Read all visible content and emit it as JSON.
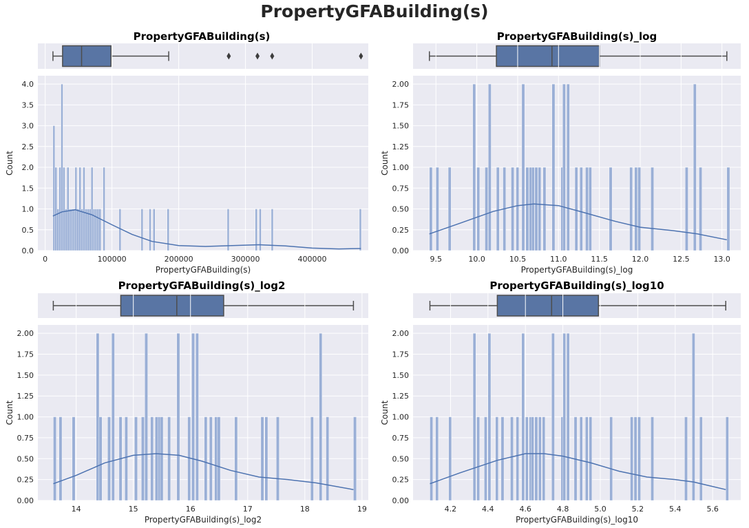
{
  "suptitle": "PropertyGFABuilding(s)",
  "colors": {
    "bar": "#9aafd6",
    "bar_stroke": "#ffffff",
    "kde": "#4c72b0",
    "box": "#5975a4",
    "bg": "#eaeaf2",
    "grid": "#ffffff",
    "box_line": "#4d4d4d"
  },
  "chart_data": [
    {
      "type": "bar",
      "title": "PropertyGFABuilding(s)",
      "xlabel": "PropertyGFABuilding(s)",
      "ylabel": "Count",
      "xlim": [
        -11000,
        484000
      ],
      "ylim": [
        0,
        4.2
      ],
      "xticks": [
        0,
        100000,
        200000,
        300000,
        400000
      ],
      "xtick_labels": [
        "0",
        "100000",
        "200000",
        "300000",
        "400000"
      ],
      "yticks": [
        0,
        0.5,
        1.0,
        1.5,
        2.0,
        2.5,
        3.0,
        3.5,
        4.0
      ],
      "ytick_labels": [
        "0.0",
        "0.5",
        "1.0",
        "1.5",
        "2.0",
        "2.5",
        "3.0",
        "3.5",
        "4.0"
      ],
      "bin_width": 3000,
      "bins": [
        [
          11600,
          3
        ],
        [
          14600,
          2
        ],
        [
          17600,
          1
        ],
        [
          20600,
          2
        ],
        [
          23600,
          4
        ],
        [
          26600,
          2
        ],
        [
          29600,
          1
        ],
        [
          32600,
          2
        ],
        [
          35600,
          1
        ],
        [
          38600,
          1
        ],
        [
          41600,
          1
        ],
        [
          44600,
          2
        ],
        [
          47600,
          1
        ],
        [
          50600,
          2
        ],
        [
          53600,
          1
        ],
        [
          56600,
          2
        ],
        [
          59600,
          1
        ],
        [
          62600,
          1
        ],
        [
          65600,
          1
        ],
        [
          68600,
          2
        ],
        [
          71600,
          1
        ],
        [
          74600,
          1
        ],
        [
          77600,
          1
        ],
        [
          80600,
          1
        ],
        [
          86600,
          2
        ],
        [
          110600,
          1
        ],
        [
          143600,
          1
        ],
        [
          155600,
          1
        ],
        [
          161600,
          1
        ],
        [
          182600,
          1
        ],
        [
          272600,
          1
        ],
        [
          314600,
          1
        ],
        [
          320600,
          1
        ],
        [
          338600,
          1
        ],
        [
          470600,
          1
        ]
      ],
      "kde": [
        [
          11600,
          0.83
        ],
        [
          25000,
          0.93
        ],
        [
          45000,
          0.98
        ],
        [
          70000,
          0.86
        ],
        [
          100000,
          0.62
        ],
        [
          130000,
          0.39
        ],
        [
          160000,
          0.22
        ],
        [
          200000,
          0.12
        ],
        [
          240000,
          0.1
        ],
        [
          280000,
          0.12
        ],
        [
          320000,
          0.14
        ],
        [
          360000,
          0.11
        ],
        [
          400000,
          0.06
        ],
        [
          440000,
          0.04
        ],
        [
          473000,
          0.05
        ]
      ],
      "box": {
        "whisker_low": 11600,
        "q1": 26000,
        "median": 54500,
        "q3": 98500,
        "whisker_high": 185000,
        "outliers": [
          275000,
          318000,
          340000,
          473000
        ]
      }
    },
    {
      "type": "bar",
      "title": "PropertyGFABuilding(s)_log",
      "xlabel": "PropertyGFABuilding(s)_log",
      "ylabel": "Count",
      "xlim": [
        9.22,
        13.23
      ],
      "ylim": [
        0,
        2.1
      ],
      "xticks": [
        9.5,
        10.0,
        10.5,
        11.0,
        11.5,
        12.0,
        12.5,
        13.0
      ],
      "xtick_labels": [
        "9.5",
        "10.0",
        "10.5",
        "11.0",
        "11.5",
        "12.0",
        "12.5",
        "13.0"
      ],
      "yticks": [
        0,
        0.25,
        0.5,
        0.75,
        1.0,
        1.25,
        1.5,
        1.75,
        2.0
      ],
      "ytick_labels": [
        "0.00",
        "0.25",
        "0.50",
        "0.75",
        "1.00",
        "1.25",
        "1.50",
        "1.75",
        "2.00"
      ],
      "bin_width": 0.036,
      "bins": [
        [
          9.42,
          1
        ],
        [
          9.5,
          1
        ],
        [
          9.65,
          1
        ],
        [
          9.95,
          2
        ],
        [
          10.0,
          1
        ],
        [
          10.1,
          1
        ],
        [
          10.14,
          2
        ],
        [
          10.24,
          1
        ],
        [
          10.32,
          1
        ],
        [
          10.42,
          1
        ],
        [
          10.48,
          1
        ],
        [
          10.55,
          2
        ],
        [
          10.6,
          1
        ],
        [
          10.64,
          1
        ],
        [
          10.67,
          1
        ],
        [
          10.71,
          1
        ],
        [
          10.75,
          1
        ],
        [
          10.81,
          1
        ],
        [
          10.92,
          2
        ],
        [
          11.03,
          1
        ],
        [
          11.05,
          2
        ],
        [
          11.1,
          2
        ],
        [
          11.2,
          1
        ],
        [
          11.26,
          1
        ],
        [
          11.33,
          1
        ],
        [
          11.37,
          1
        ],
        [
          11.62,
          1
        ],
        [
          11.87,
          1
        ],
        [
          11.93,
          1
        ],
        [
          11.97,
          1
        ],
        [
          12.13,
          1
        ],
        [
          12.55,
          1
        ],
        [
          12.65,
          2
        ],
        [
          12.72,
          1
        ],
        [
          13.06,
          1
        ]
      ],
      "kde": [
        [
          9.42,
          0.2
        ],
        [
          9.8,
          0.33
        ],
        [
          10.2,
          0.47
        ],
        [
          10.5,
          0.54
        ],
        [
          10.7,
          0.56
        ],
        [
          11.0,
          0.54
        ],
        [
          11.3,
          0.46
        ],
        [
          11.7,
          0.35
        ],
        [
          12.0,
          0.28
        ],
        [
          12.4,
          0.24
        ],
        [
          12.7,
          0.2
        ],
        [
          13.06,
          0.13
        ]
      ],
      "box": {
        "whisker_low": 9.42,
        "q1": 10.24,
        "median": 10.92,
        "q3": 11.5,
        "whisker_high": 13.06,
        "outliers": []
      }
    },
    {
      "type": "bar",
      "title": "PropertyGFABuilding(s)_log2",
      "xlabel": "PropertyGFABuilding(s)_log2",
      "ylabel": "Count",
      "xlim": [
        13.33,
        19.11
      ],
      "ylim": [
        0,
        2.1
      ],
      "xticks": [
        14,
        15,
        16,
        17,
        18,
        19
      ],
      "xtick_labels": [
        "14",
        "15",
        "16",
        "17",
        "18",
        "19"
      ],
      "yticks": [
        0,
        0.25,
        0.5,
        0.75,
        1.0,
        1.25,
        1.5,
        1.75,
        2.0
      ],
      "ytick_labels": [
        "0.00",
        "0.25",
        "0.50",
        "0.75",
        "1.00",
        "1.25",
        "1.50",
        "1.75",
        "2.00"
      ],
      "bin_width": 0.052,
      "bins": [
        [
          13.6,
          1
        ],
        [
          13.7,
          1
        ],
        [
          13.93,
          1
        ],
        [
          14.35,
          2
        ],
        [
          14.4,
          1
        ],
        [
          14.55,
          1
        ],
        [
          14.62,
          2
        ],
        [
          14.75,
          1
        ],
        [
          14.85,
          1
        ],
        [
          15.02,
          1
        ],
        [
          15.14,
          1
        ],
        [
          15.2,
          2
        ],
        [
          15.3,
          1
        ],
        [
          15.38,
          1
        ],
        [
          15.43,
          1
        ],
        [
          15.47,
          1
        ],
        [
          15.6,
          1
        ],
        [
          15.76,
          2
        ],
        [
          15.95,
          1
        ],
        [
          16.02,
          2
        ],
        [
          16.09,
          2
        ],
        [
          16.24,
          1
        ],
        [
          16.33,
          1
        ],
        [
          16.42,
          1
        ],
        [
          16.47,
          1
        ],
        [
          16.77,
          1
        ],
        [
          17.23,
          1
        ],
        [
          17.3,
          1
        ],
        [
          17.5,
          1
        ],
        [
          18.1,
          1
        ],
        [
          18.25,
          2
        ],
        [
          18.37,
          1
        ],
        [
          18.85,
          1
        ]
      ],
      "kde": [
        [
          13.6,
          0.2
        ],
        [
          14.0,
          0.3
        ],
        [
          14.5,
          0.45
        ],
        [
          15.0,
          0.54
        ],
        [
          15.4,
          0.56
        ],
        [
          15.8,
          0.54
        ],
        [
          16.2,
          0.47
        ],
        [
          16.7,
          0.36
        ],
        [
          17.2,
          0.28
        ],
        [
          17.7,
          0.25
        ],
        [
          18.2,
          0.21
        ],
        [
          18.85,
          0.13
        ]
      ],
      "box": {
        "whisker_low": 13.6,
        "q1": 14.78,
        "median": 15.76,
        "q3": 16.58,
        "whisker_high": 18.85,
        "outliers": []
      }
    },
    {
      "type": "bar",
      "title": "PropertyGFABuilding(s)_log10",
      "xlabel": "PropertyGFABuilding(s)_log10",
      "ylabel": "Count",
      "xlim": [
        4.0,
        5.75
      ],
      "ylim": [
        0,
        2.1
      ],
      "xticks": [
        4.2,
        4.4,
        4.6,
        4.8,
        5.0,
        5.2,
        5.4,
        5.6
      ],
      "xtick_labels": [
        "4.2",
        "4.4",
        "4.6",
        "4.8",
        "5.0",
        "5.2",
        "5.4",
        "5.6"
      ],
      "yticks": [
        0,
        0.25,
        0.5,
        0.75,
        1.0,
        1.25,
        1.5,
        1.75,
        2.0
      ],
      "ytick_labels": [
        "0.00",
        "0.25",
        "0.50",
        "0.75",
        "1.00",
        "1.25",
        "1.50",
        "1.75",
        "2.00"
      ],
      "bin_width": 0.0155,
      "bins": [
        [
          4.09,
          1
        ],
        [
          4.12,
          1
        ],
        [
          4.19,
          1
        ],
        [
          4.32,
          2
        ],
        [
          4.34,
          1
        ],
        [
          4.38,
          1
        ],
        [
          4.4,
          2
        ],
        [
          4.44,
          1
        ],
        [
          4.47,
          1
        ],
        [
          4.52,
          1
        ],
        [
          4.55,
          1
        ],
        [
          4.58,
          2
        ],
        [
          4.6,
          1
        ],
        [
          4.62,
          1
        ],
        [
          4.63,
          1
        ],
        [
          4.65,
          1
        ],
        [
          4.67,
          1
        ],
        [
          4.69,
          1
        ],
        [
          4.74,
          2
        ],
        [
          4.79,
          1
        ],
        [
          4.8,
          2
        ],
        [
          4.82,
          2
        ],
        [
          4.86,
          1
        ],
        [
          4.89,
          1
        ],
        [
          4.92,
          1
        ],
        [
          4.94,
          1
        ],
        [
          5.05,
          1
        ],
        [
          5.16,
          1
        ],
        [
          5.18,
          1
        ],
        [
          5.2,
          1
        ],
        [
          5.27,
          1
        ],
        [
          5.45,
          1
        ],
        [
          5.49,
          2
        ],
        [
          5.53,
          1
        ],
        [
          5.67,
          1
        ]
      ],
      "kde": [
        [
          4.09,
          0.2
        ],
        [
          4.25,
          0.33
        ],
        [
          4.45,
          0.48
        ],
        [
          4.6,
          0.56
        ],
        [
          4.7,
          0.56
        ],
        [
          4.8,
          0.53
        ],
        [
          4.95,
          0.45
        ],
        [
          5.1,
          0.35
        ],
        [
          5.25,
          0.28
        ],
        [
          5.4,
          0.25
        ],
        [
          5.5,
          0.22
        ],
        [
          5.67,
          0.13
        ]
      ],
      "box": {
        "whisker_low": 4.09,
        "q1": 4.45,
        "median": 4.74,
        "q3": 4.99,
        "whisker_high": 5.67,
        "outliers": []
      }
    }
  ]
}
